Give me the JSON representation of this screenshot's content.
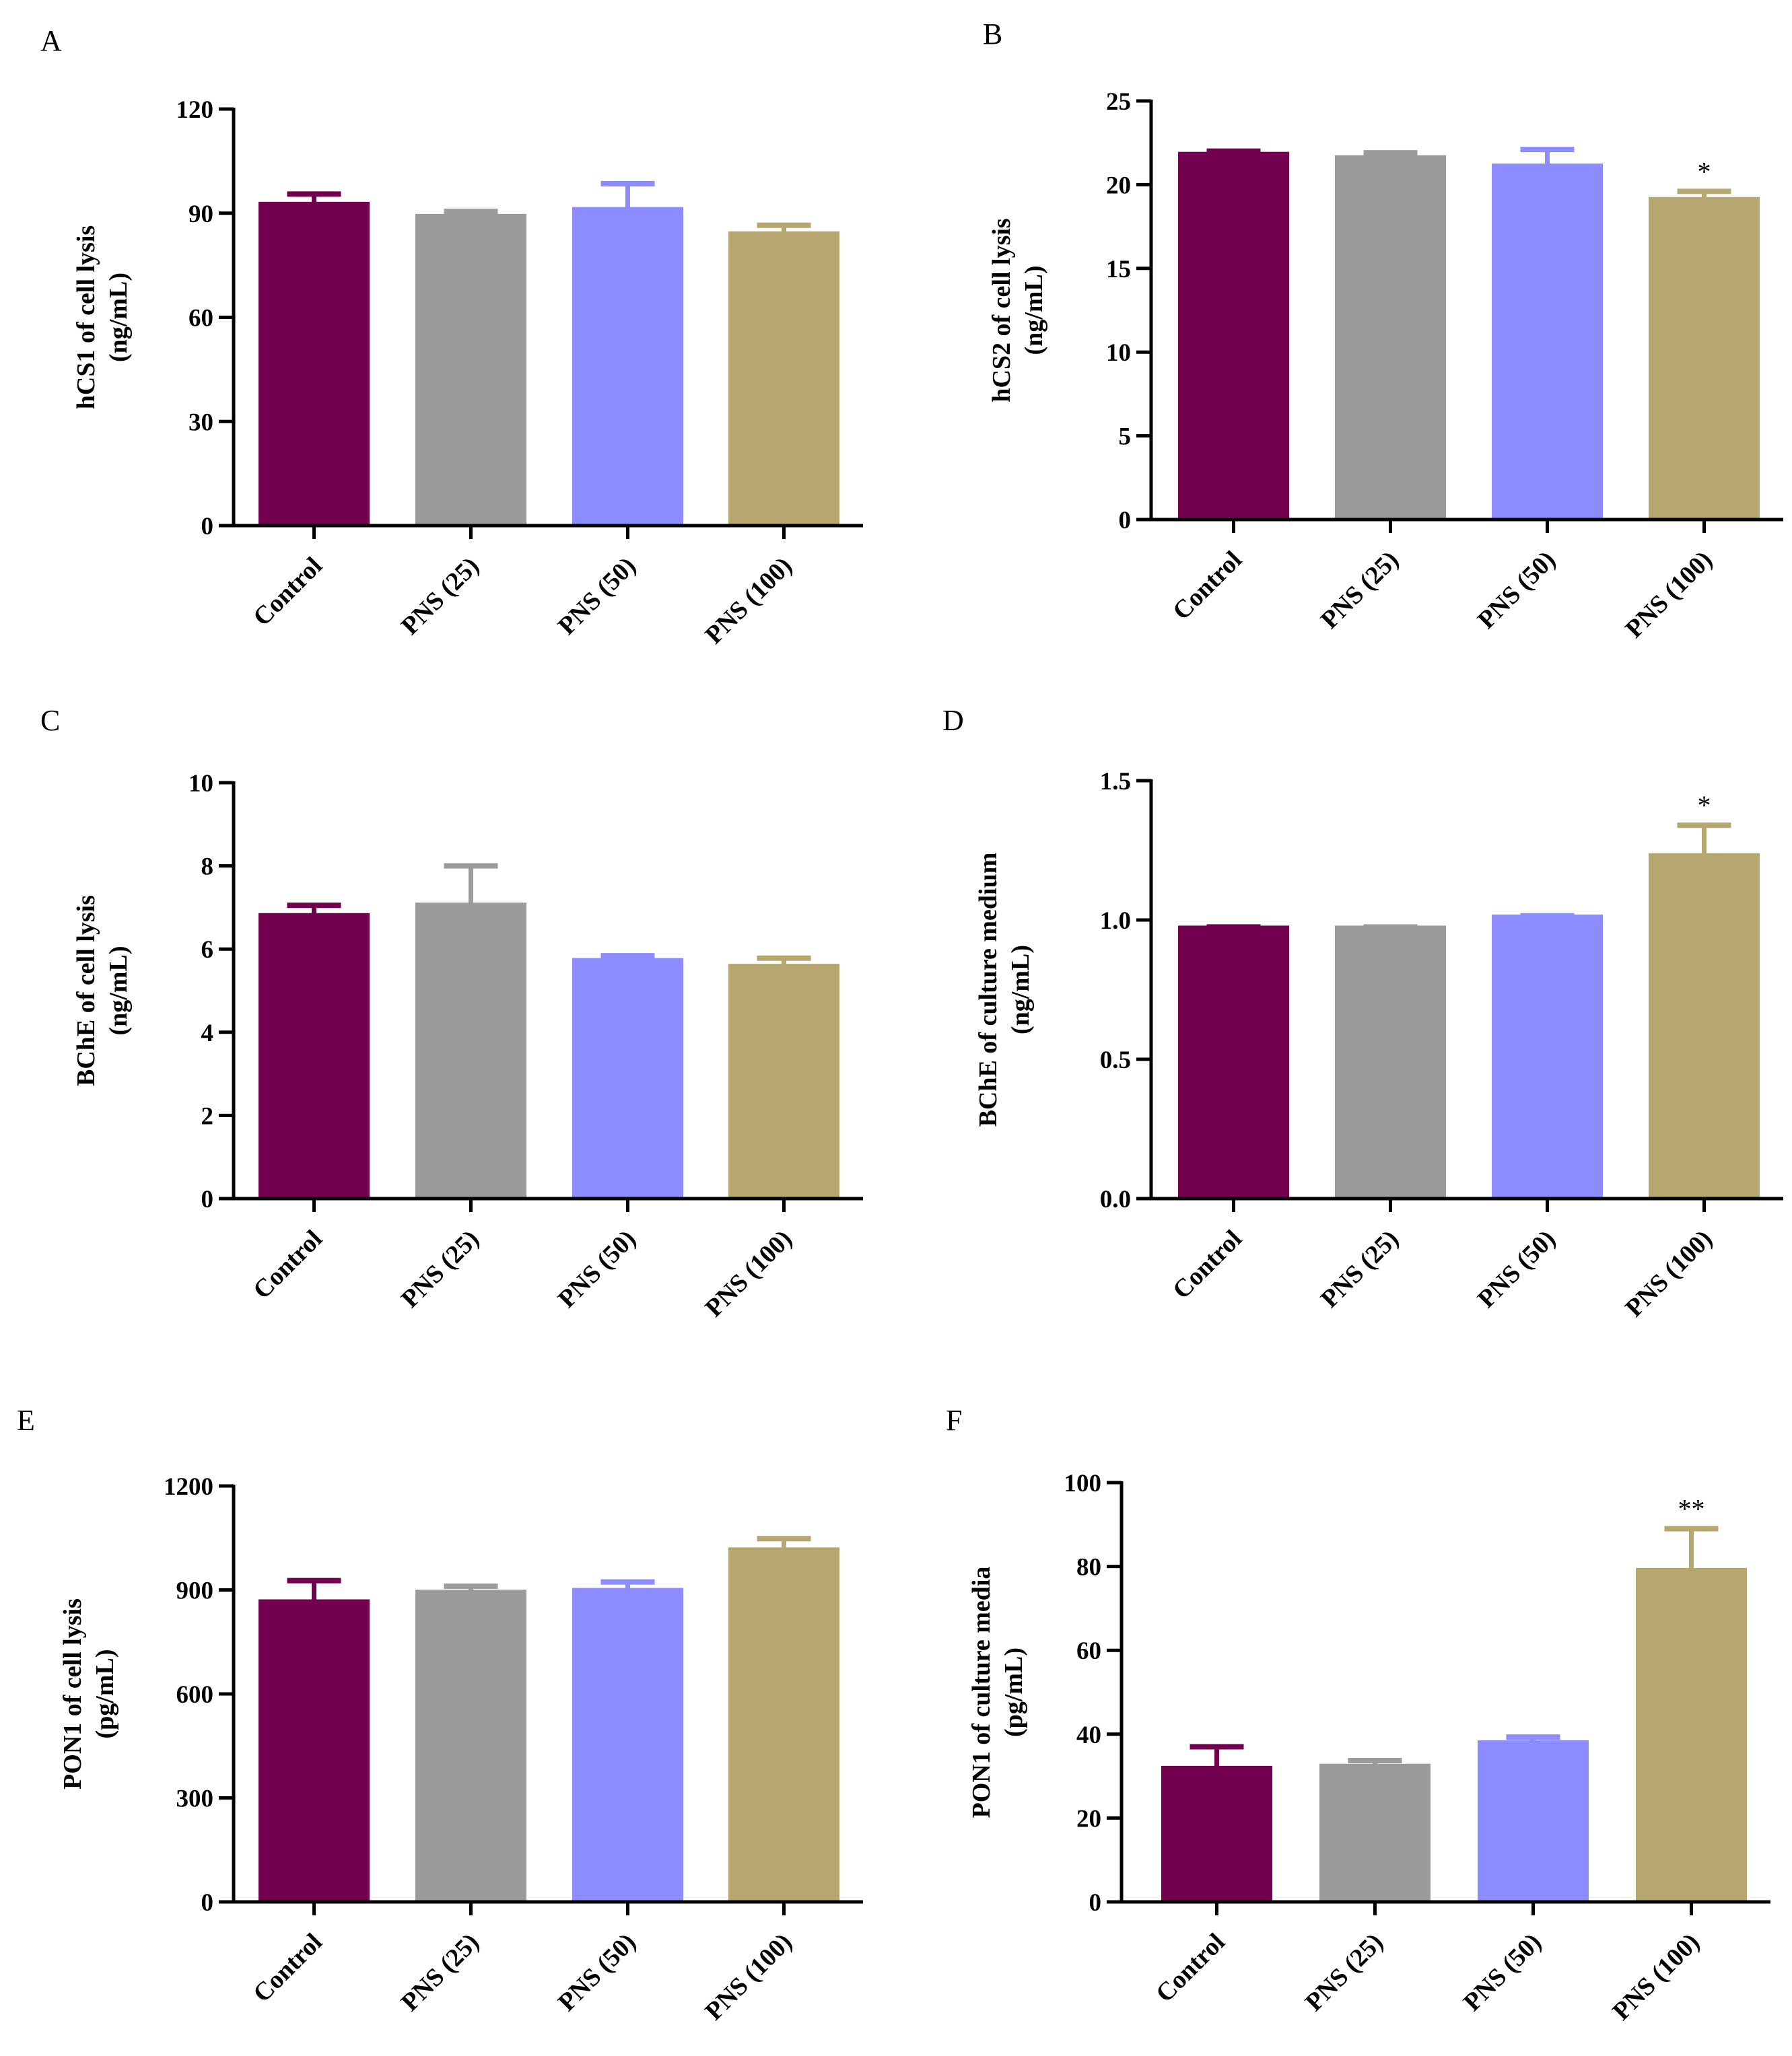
{
  "colors": {
    "Control": "#72004e",
    "PNS (25)": "#9b9b9b",
    "PNS (50)": "#8c8cff",
    "PNS (100)": "#b6a771",
    "axis": "#000000"
  },
  "chart_data": [
    {
      "type": "bar",
      "panel": "A",
      "categories": [
        "Control",
        "PNS (25)",
        "PNS (50)",
        "PNS (100)"
      ],
      "values": [
        92.5,
        89,
        91,
        84
      ],
      "errors": [
        3,
        1.5,
        7.5,
        2.5
      ],
      "annotations": [
        "",
        "",
        "",
        ""
      ],
      "ylabel": [
        "hCS1 of cell lysis",
        "(ng/mL)"
      ],
      "ylim": [
        0,
        120
      ],
      "yticks": [
        0,
        30,
        60,
        90,
        120
      ],
      "ytick_labels": [
        "0",
        "30",
        "60",
        "90",
        "120"
      ],
      "grid": false,
      "legend": "none"
    },
    {
      "type": "bar",
      "panel": "B",
      "categories": [
        "Control",
        "PNS (25)",
        "PNS (50)",
        "PNS (100)"
      ],
      "values": [
        21.8,
        21.6,
        21.1,
        19.1
      ],
      "errors": [
        0.2,
        0.3,
        1.0,
        0.5
      ],
      "annotations": [
        "",
        "",
        "",
        "*"
      ],
      "ylabel": [
        "hCS2 of cell lysis",
        "(ng/mL)"
      ],
      "ylim": [
        0,
        25
      ],
      "yticks": [
        0,
        5,
        10,
        15,
        20,
        25
      ],
      "ytick_labels": [
        "0",
        "5",
        "10",
        "15",
        "20",
        "25"
      ],
      "grid": false,
      "legend": "none"
    },
    {
      "type": "bar",
      "panel": "C",
      "categories": [
        "Control",
        "PNS (25)",
        "PNS (50)",
        "PNS (100)"
      ],
      "values": [
        6.8,
        7.05,
        5.72,
        5.58
      ],
      "errors": [
        0.25,
        0.95,
        0.12,
        0.2
      ],
      "annotations": [
        "",
        "",
        "",
        ""
      ],
      "ylabel": [
        "BChE of cell lysis",
        "(ng/mL)"
      ],
      "ylim": [
        0,
        10
      ],
      "yticks": [
        0,
        2,
        4,
        6,
        8,
        10
      ],
      "ytick_labels": [
        "0",
        "2",
        "4",
        "6",
        "8",
        "10"
      ],
      "grid": false,
      "legend": "none"
    },
    {
      "type": "bar",
      "panel": "D",
      "categories": [
        "Control",
        "PNS (25)",
        "PNS (50)",
        "PNS (100)"
      ],
      "values": [
        0.97,
        0.97,
        1.01,
        1.23
      ],
      "errors": [
        0.005,
        0.005,
        0.005,
        0.11
      ],
      "annotations": [
        "",
        "",
        "",
        "*"
      ],
      "ylabel": [
        "BChE of culture medium",
        "(ng/mL)"
      ],
      "ylim": [
        0,
        1.5
      ],
      "yticks": [
        0,
        0.5,
        1.0,
        1.5
      ],
      "ytick_labels": [
        "0.0",
        "0.5",
        "1.0",
        "1.5"
      ],
      "grid": false,
      "legend": "none"
    },
    {
      "type": "bar",
      "panel": "E",
      "categories": [
        "Control",
        "PNS (25)",
        "PNS (50)",
        "PNS (100)"
      ],
      "values": [
        865,
        893,
        898,
        1015
      ],
      "errors": [
        62,
        18,
        25,
        33
      ],
      "annotations": [
        "",
        "",
        "",
        ""
      ],
      "ylabel": [
        "PON1 of cell lysis",
        "(pg/mL)"
      ],
      "ylim": [
        0,
        1200
      ],
      "yticks": [
        0,
        300,
        600,
        900,
        1200
      ],
      "ytick_labels": [
        "0",
        "300",
        "600",
        "900",
        "1200"
      ],
      "grid": false,
      "legend": "none"
    },
    {
      "type": "bar",
      "panel": "F",
      "categories": [
        "Control",
        "PNS (25)",
        "PNS (50)",
        "PNS (100)"
      ],
      "values": [
        31.8,
        32.3,
        37.9,
        79
      ],
      "errors": [
        5.2,
        1.4,
        1.4,
        10
      ],
      "annotations": [
        "",
        "",
        "",
        "**"
      ],
      "ylabel": [
        "PON1 of culture media",
        "(pg/mL)"
      ],
      "ylim": [
        0,
        100
      ],
      "yticks": [
        0,
        20,
        40,
        60,
        80,
        100
      ],
      "ytick_labels": [
        "0",
        "20",
        "40",
        "60",
        "80",
        "100"
      ],
      "grid": false,
      "legend": "none"
    }
  ]
}
